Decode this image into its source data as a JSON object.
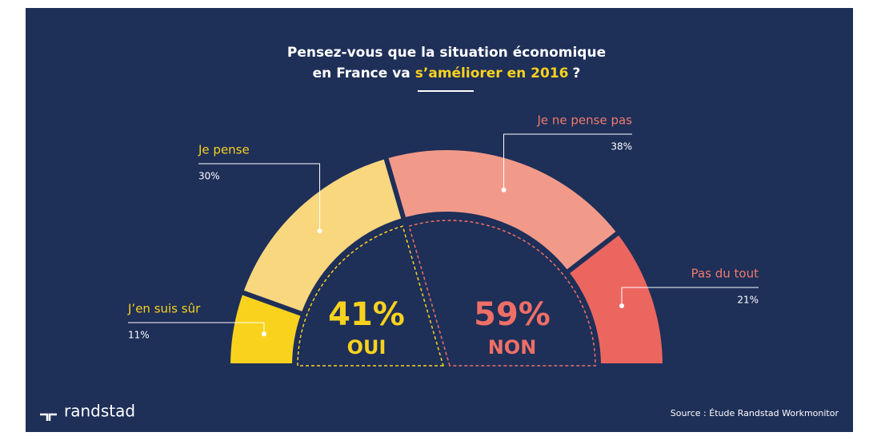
{
  "chart_data": {
    "type": "half-donut",
    "title_line1": "Pensez-vous que la situation économique",
    "title_line2": "en France va",
    "title_highlight": "s’améliorer en 2016",
    "title_end": "?",
    "categories": [
      "J’en suis sûr",
      "Je pense",
      "Je ne pense pas",
      "Pas du tout"
    ],
    "values": [
      11,
      30,
      38,
      21
    ],
    "value_labels": [
      "11%",
      "30%",
      "38%",
      "21%"
    ],
    "colors": [
      "#f9d21e",
      "#f9d77f",
      "#f29a8a",
      "#ec6660"
    ],
    "groups": [
      {
        "name": "OUI",
        "value": 41,
        "label": "41%",
        "color": "#f9d21e"
      },
      {
        "name": "NON",
        "value": 59,
        "label": "59%",
        "color": "#ef6f66"
      }
    ],
    "source": "Source : Étude Randstad Workmonitor",
    "logo": "randstad"
  }
}
